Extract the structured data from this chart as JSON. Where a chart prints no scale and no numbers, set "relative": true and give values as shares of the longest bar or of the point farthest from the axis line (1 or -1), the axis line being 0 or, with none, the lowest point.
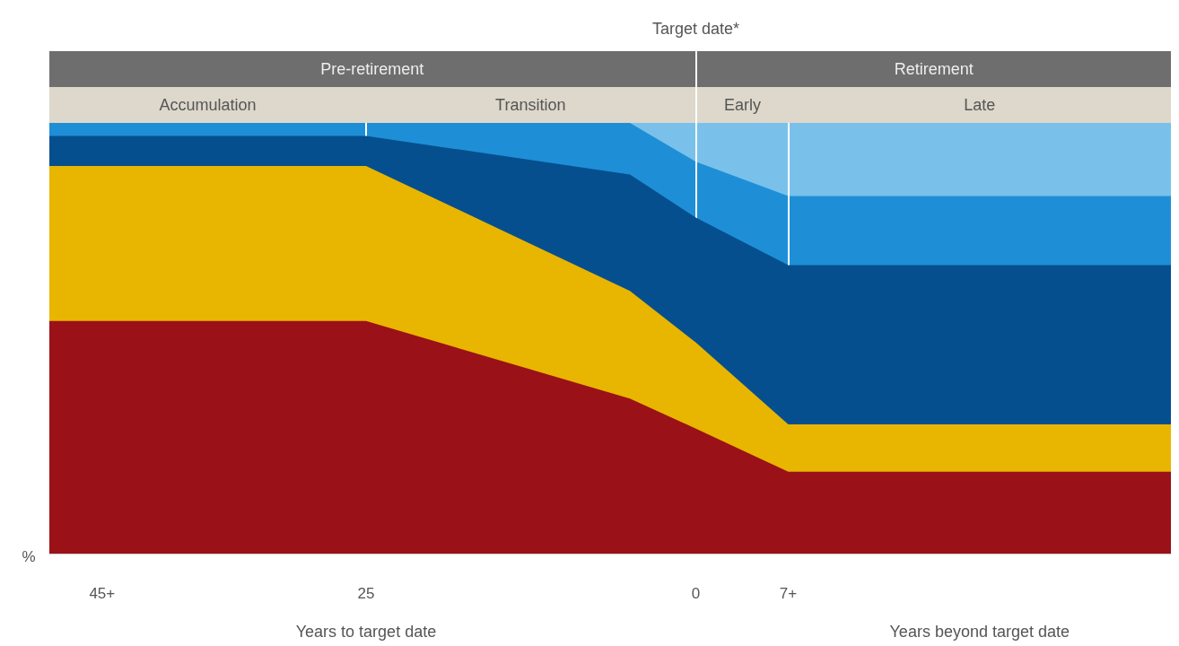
{
  "chart_data": {
    "type": "area",
    "stacked": true,
    "relative": true,
    "x": [
      -49,
      -25,
      -5,
      0,
      7,
      36
    ],
    "xlim": [
      -49,
      36
    ],
    "xticks": [
      {
        "value": -45,
        "label": "45+"
      },
      {
        "value": -25,
        "label": "25"
      },
      0,
      {
        "value": 7,
        "label": "7+"
      }
    ],
    "xlabel": "Years to target date",
    "ylabel": "%",
    "series": [
      {
        "color": "#9b1118",
        "values": [
          0.54,
          0.54,
          0.36,
          0.29,
          0.19,
          0.19
        ]
      },
      {
        "color": "#e8b500",
        "values": [
          0.36,
          0.36,
          0.25,
          0.2,
          0.11,
          0.11
        ]
      },
      {
        "color": "#064f8f",
        "values": [
          0.07,
          0.07,
          0.27,
          0.29,
          0.37,
          0.37
        ]
      },
      {
        "color": "#1e8fd6",
        "values": [
          0.03,
          0.03,
          0.12,
          0.13,
          0.16,
          0.16
        ]
      },
      {
        "color": "#79c1ea",
        "values": [
          null,
          null,
          0,
          0.09,
          0.17,
          0.17
        ]
      }
    ],
    "ref_lines": [
      {
        "axis": "x",
        "value": -25,
        "label": null,
        "color": "#ffffff"
      },
      {
        "axis": "x",
        "value": 0,
        "label": "Target date*",
        "color": "#ffffff"
      },
      {
        "axis": "x",
        "value": 7,
        "label": null,
        "color": "#ffffff"
      }
    ],
    "annotations": [
      "Pre-retirement",
      "Retirement",
      "Accumulation",
      "Transition",
      "Early",
      "Late",
      "Years beyond target date"
    ]
  }
}
